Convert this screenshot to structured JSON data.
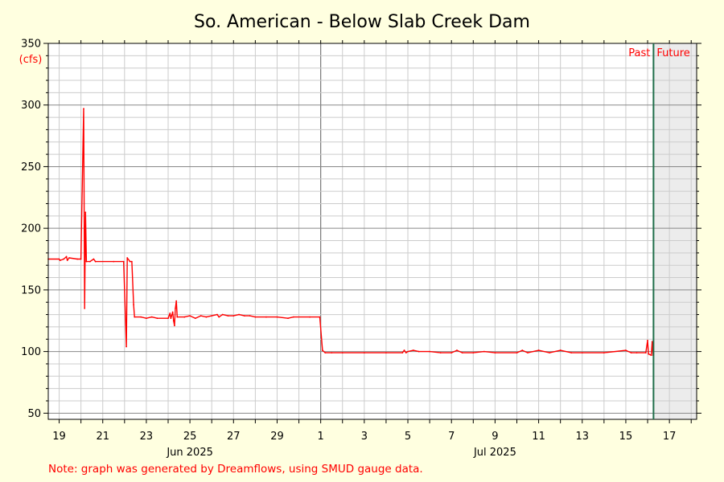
{
  "chart_data": {
    "type": "line",
    "title": "So. American - Below Slab Creek Dam",
    "ylabel": "(cfs)",
    "ylim": [
      45,
      350
    ],
    "y_ticks": [
      50,
      100,
      150,
      200,
      250,
      300,
      350
    ],
    "xlim": [
      "2025-06-18 12:00",
      "2025-07-18 06:00"
    ],
    "x_tick_labels": [
      {
        "date": "2025-06-19",
        "label": "19"
      },
      {
        "date": "2025-06-21",
        "label": "21"
      },
      {
        "date": "2025-06-23",
        "label": "23"
      },
      {
        "date": "2025-06-25",
        "label": "25"
      },
      {
        "date": "2025-06-27",
        "label": "27"
      },
      {
        "date": "2025-06-29",
        "label": "29"
      },
      {
        "date": "2025-07-01",
        "label": "1"
      },
      {
        "date": "2025-07-03",
        "label": "3"
      },
      {
        "date": "2025-07-05",
        "label": "5"
      },
      {
        "date": "2025-07-07",
        "label": "7"
      },
      {
        "date": "2025-07-09",
        "label": "9"
      },
      {
        "date": "2025-07-11",
        "label": "11"
      },
      {
        "date": "2025-07-13",
        "label": "13"
      },
      {
        "date": "2025-07-15",
        "label": "15"
      },
      {
        "date": "2025-07-17",
        "label": "17"
      }
    ],
    "month_labels": [
      {
        "date": "2025-06-25",
        "label": "Jun 2025"
      },
      {
        "date": "2025-07-09",
        "label": "Jul 2025"
      }
    ],
    "now_marker": {
      "date": "2025-07-16 06:30",
      "past_label": "Past",
      "future_label": "Future"
    },
    "grid": true,
    "series_color": "#ff0000",
    "series": [
      {
        "points": [
          [
            "2025-06-18 12:00",
            175
          ],
          [
            "2025-06-19 00:00",
            175
          ],
          [
            "2025-06-19 01:00",
            174
          ],
          [
            "2025-06-19 05:00",
            175
          ],
          [
            "2025-06-19 08:00",
            177
          ],
          [
            "2025-06-19 09:00",
            174
          ],
          [
            "2025-06-19 11:00",
            176
          ],
          [
            "2025-06-19 20:00",
            175
          ],
          [
            "2025-06-20 00:00",
            175
          ],
          [
            "2025-06-20 03:00",
            297
          ],
          [
            "2025-06-20 04:00",
            135
          ],
          [
            "2025-06-20 05:00",
            213
          ],
          [
            "2025-06-20 06:00",
            173
          ],
          [
            "2025-06-20 10:00",
            173
          ],
          [
            "2025-06-20 14:00",
            175
          ],
          [
            "2025-06-20 16:00",
            173
          ],
          [
            "2025-06-21 12:00",
            173
          ],
          [
            "2025-06-21 23:00",
            173
          ],
          [
            "2025-06-22 02:00",
            104
          ],
          [
            "2025-06-22 03:00",
            176
          ],
          [
            "2025-06-22 06:00",
            173
          ],
          [
            "2025-06-22 08:00",
            173
          ],
          [
            "2025-06-22 10:00",
            138
          ],
          [
            "2025-06-22 11:00",
            128
          ],
          [
            "2025-06-22 18:00",
            128
          ],
          [
            "2025-06-23 00:00",
            127
          ],
          [
            "2025-06-23 06:00",
            128
          ],
          [
            "2025-06-23 12:00",
            127
          ],
          [
            "2025-06-24 00:00",
            127
          ],
          [
            "2025-06-24 02:00",
            131
          ],
          [
            "2025-06-24 03:00",
            127
          ],
          [
            "2025-06-24 05:00",
            132
          ],
          [
            "2025-06-24 06:00",
            125
          ],
          [
            "2025-06-24 07:00",
            121
          ],
          [
            "2025-06-24 08:00",
            135
          ],
          [
            "2025-06-24 09:00",
            141
          ],
          [
            "2025-06-24 10:00",
            128
          ],
          [
            "2025-06-24 18:00",
            128
          ],
          [
            "2025-06-25 00:00",
            129
          ],
          [
            "2025-06-25 06:00",
            127
          ],
          [
            "2025-06-25 12:00",
            129
          ],
          [
            "2025-06-25 18:00",
            128
          ],
          [
            "2025-06-26 00:00",
            129
          ],
          [
            "2025-06-26 06:00",
            130
          ],
          [
            "2025-06-26 08:00",
            128
          ],
          [
            "2025-06-26 12:00",
            130
          ],
          [
            "2025-06-26 18:00",
            129
          ],
          [
            "2025-06-27 00:00",
            129
          ],
          [
            "2025-06-27 06:00",
            130
          ],
          [
            "2025-06-27 12:00",
            129
          ],
          [
            "2025-06-27 18:00",
            129
          ],
          [
            "2025-06-28 00:00",
            128
          ],
          [
            "2025-06-28 12:00",
            128
          ],
          [
            "2025-06-29 00:00",
            128
          ],
          [
            "2025-06-29 12:00",
            127
          ],
          [
            "2025-06-29 18:00",
            128
          ],
          [
            "2025-06-30 12:00",
            128
          ],
          [
            "2025-06-30 23:00",
            128
          ],
          [
            "2025-07-01 02:00",
            101
          ],
          [
            "2025-07-01 05:00",
            99
          ],
          [
            "2025-07-01 12:00",
            99
          ],
          [
            "2025-07-02 00:00",
            99
          ],
          [
            "2025-07-03 00:00",
            99
          ],
          [
            "2025-07-04 00:00",
            99
          ],
          [
            "2025-07-04 18:00",
            99
          ],
          [
            "2025-07-04 20:00",
            101
          ],
          [
            "2025-07-04 22:00",
            99
          ],
          [
            "2025-07-05 00:00",
            100
          ],
          [
            "2025-07-05 06:00",
            101
          ],
          [
            "2025-07-05 12:00",
            100
          ],
          [
            "2025-07-06 00:00",
            100
          ],
          [
            "2025-07-06 12:00",
            99
          ],
          [
            "2025-07-07 00:00",
            99
          ],
          [
            "2025-07-07 06:00",
            101
          ],
          [
            "2025-07-07 12:00",
            99
          ],
          [
            "2025-07-08 00:00",
            99
          ],
          [
            "2025-07-08 12:00",
            100
          ],
          [
            "2025-07-09 00:00",
            99
          ],
          [
            "2025-07-10 00:00",
            99
          ],
          [
            "2025-07-10 06:00",
            101
          ],
          [
            "2025-07-10 12:00",
            99
          ],
          [
            "2025-07-11 00:00",
            101
          ],
          [
            "2025-07-11 12:00",
            99
          ],
          [
            "2025-07-12 00:00",
            101
          ],
          [
            "2025-07-12 12:00",
            99
          ],
          [
            "2025-07-13 00:00",
            99
          ],
          [
            "2025-07-14 00:00",
            99
          ],
          [
            "2025-07-15 00:00",
            101
          ],
          [
            "2025-07-15 06:00",
            99
          ],
          [
            "2025-07-15 12:00",
            99
          ],
          [
            "2025-07-15 22:00",
            99
          ],
          [
            "2025-07-16 00:00",
            109
          ],
          [
            "2025-07-16 01:00",
            98
          ],
          [
            "2025-07-16 04:00",
            97
          ],
          [
            "2025-07-16 05:00",
            108
          ],
          [
            "2025-07-16 06:00",
            97
          ]
        ]
      }
    ]
  },
  "footer": {
    "note": "Note: graph was generated by Dreamflows, using SMUD gauge data."
  }
}
